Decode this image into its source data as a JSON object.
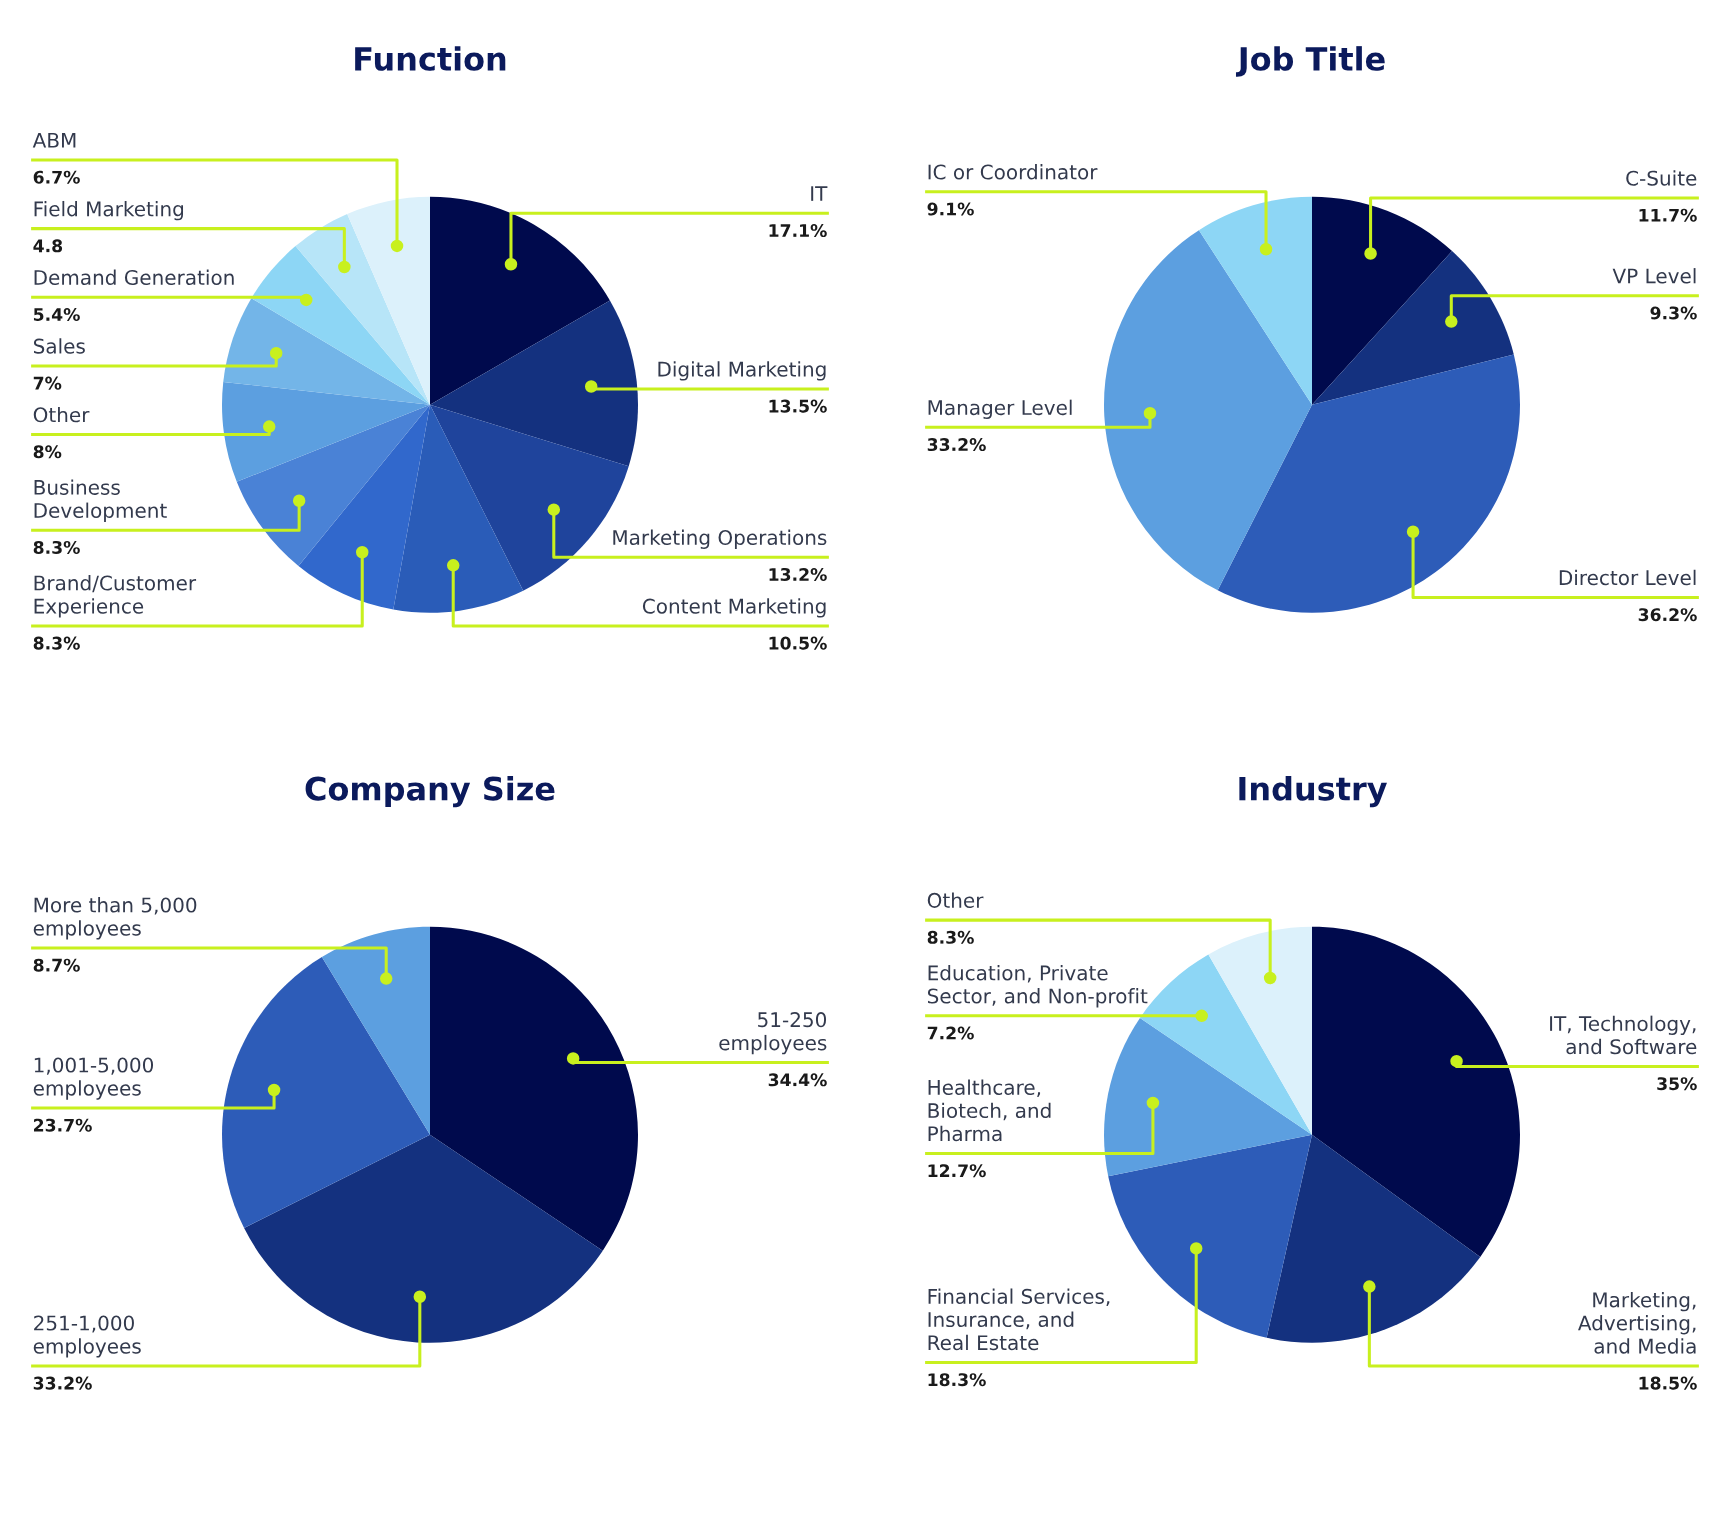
{
  "chart_data": [
    {
      "type": "pie",
      "title": "Function",
      "categories": [
        "IT",
        "Digital Marketing",
        "Marketing Operations",
        "Content Marketing",
        "Brand/Customer\nExperience",
        "Business\nDevelopment",
        "Other",
        "Sales",
        "Demand Generation",
        "Field Marketing",
        "ABM"
      ],
      "values": [
        17.1,
        13.5,
        13.2,
        10.5,
        8.3,
        8.3,
        8,
        7,
        5.4,
        4.8,
        6.7
      ],
      "value_labels": [
        "17.1%",
        "13.5%",
        "13.2%",
        "10.5%",
        "8.3%",
        "8.3%",
        "8%",
        "7%",
        "5.4%",
        "4.8",
        "6.7%"
      ],
      "colors": [
        "#000a4d",
        "#14317f",
        "#1f449c",
        "#2a5cb8",
        "#3168cc",
        "#4a82d6",
        "#5c9fe0",
        "#73b5e8",
        "#8dd6f5",
        "#b7e5f8",
        "#dcf1fb"
      ]
    },
    {
      "type": "pie",
      "title": "Job Title",
      "categories": [
        "C-Suite",
        "VP Level",
        "Director Level",
        "Manager Level",
        "IC or Coordinator"
      ],
      "values": [
        11.7,
        9.3,
        36.2,
        33.2,
        9.1
      ],
      "value_labels": [
        "11.7%",
        "9.3%",
        "36.2%",
        "33.2%",
        "9.1%"
      ],
      "colors": [
        "#000a4d",
        "#14317f",
        "#2d5cb8",
        "#5c9fe0",
        "#8dd6f5"
      ]
    },
    {
      "type": "pie",
      "title": "Company Size",
      "categories": [
        "51-250\nemployees",
        "251-1,000\nemployees",
        "1,001-5,000\nemployees",
        "More than 5,000\nemployees"
      ],
      "values": [
        34.4,
        33.2,
        23.7,
        8.7
      ],
      "value_labels": [
        "34.4%",
        "33.2%",
        "23.7%",
        "8.7%"
      ],
      "colors": [
        "#000a4d",
        "#14317f",
        "#2d5cb8",
        "#5c9fe0"
      ]
    },
    {
      "type": "pie",
      "title": "Industry",
      "categories": [
        "IT, Technology,\nand Software",
        "Marketing,\nAdvertising,\nand Media",
        "Financial Services,\nInsurance, and\nReal Estate",
        "Healthcare,\nBiotech, and\nPharma",
        "Education, Private\nSector, and Non-profit",
        "Other"
      ],
      "values": [
        35,
        18.5,
        18.3,
        12.7,
        7.2,
        8.3
      ],
      "value_labels": [
        "35%",
        "18.5%",
        "18.3%",
        "12.7%",
        "7.2%",
        "8.3%"
      ],
      "colors": [
        "#000a4d",
        "#14317f",
        "#2d5cb8",
        "#5c9fe0",
        "#8dd6f5",
        "#dcf1fb"
      ]
    }
  ]
}
